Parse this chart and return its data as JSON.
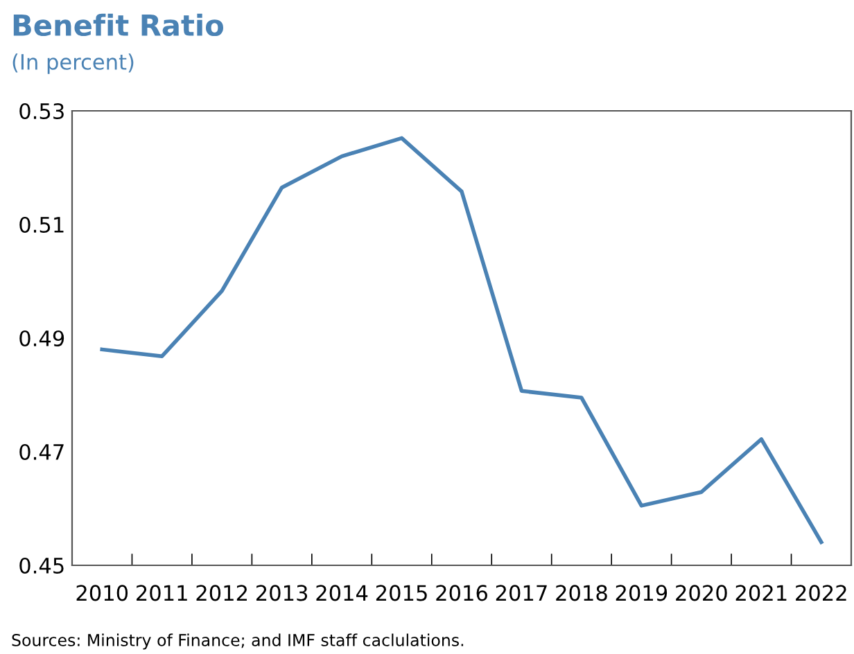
{
  "chart_data": {
    "type": "line",
    "title": "Benefit Ratio",
    "subtitle": "(In percent)",
    "categories": [
      "2010",
      "2011",
      "2012",
      "2013",
      "2014",
      "2015",
      "2016",
      "2017",
      "2018",
      "2019",
      "2020",
      "2021",
      "2022"
    ],
    "series": [
      {
        "color": "#4a82b4",
        "values": [
          0.488,
          0.4868,
          0.4983,
          0.5165,
          0.522,
          0.5252,
          0.5158,
          0.4807,
          0.4795,
          0.4605,
          0.4629,
          0.4722,
          0.4541
        ]
      }
    ],
    "ylim": [
      0.45,
      0.53
    ],
    "yticks": [
      0.45,
      0.47,
      0.49,
      0.51,
      0.53
    ],
    "grid": false,
    "marker": "none",
    "line_style": "solid",
    "annotations": [
      "Sources: Ministry of Finance; and IMF staff caclulations."
    ]
  }
}
